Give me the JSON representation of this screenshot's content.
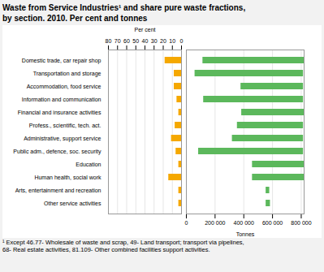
{
  "chart_data": [
    {
      "type": "bar",
      "orientation": "horizontal",
      "title": "Waste from Service Industries¹ and share pure waste fractions,\nby section. 2010. Per cent and tonnes",
      "footnote": "¹ Except 46.77- Wholesale of waste and scrap, 49- Land transport; transport via pipelines,\n68- Real estate activities, 81.109- Other combined facilities support activities.",
      "categories": [
        "Domestic trade, car repair shop",
        "Transportation and storage",
        "Accommodation, food service",
        "Information and communication",
        "Financial and insurance activities",
        "Profess., scientific, tech. act.",
        "Administrative, support service",
        "Public adm., defence, soc. security",
        "Education",
        "Human health, social work",
        "Arts, entertainment and recreation",
        "Other service activities"
      ],
      "values": [
        18,
        8,
        8,
        5,
        3,
        7,
        11,
        6,
        3,
        14,
        3,
        3
      ],
      "color": "#F5A800",
      "xlim": [
        80,
        0
      ],
      "xticks": [
        80,
        70,
        60,
        50,
        40,
        30,
        20,
        10,
        0
      ],
      "xlabel": "Per cent",
      "grid": true
    },
    {
      "type": "bar",
      "orientation": "horizontal",
      "categories": [
        "Domestic trade, car repair shop",
        "Transportation and storage",
        "Accommodation, food service",
        "Information and communication",
        "Financial and insurance activities",
        "Profess., scientific, tech. act.",
        "Administrative, support service",
        "Public adm., defence, soc. security",
        "Education",
        "Human health, social work",
        "Arts, entertainment and recreation",
        "Other service activities"
      ],
      "values": [
        [
          115000,
          820000
        ],
        [
          60000,
          815000
        ],
        [
          380000,
          815000
        ],
        [
          120000,
          815000
        ],
        [
          385000,
          820000
        ],
        [
          355000,
          815000
        ],
        [
          320000,
          815000
        ],
        [
          85000,
          815000
        ],
        [
          460000,
          820000
        ],
        [
          460000,
          820000
        ],
        [
          555000,
          580000
        ],
        [
          555000,
          585000
        ]
      ],
      "color": "#5CB85C",
      "xlim": [
        0,
        820000
      ],
      "xticks": [
        0,
        {
          "value": 200000,
          "label": "200 000"
        },
        {
          "value": 400000,
          "label": "400 000"
        },
        {
          "value": 600000,
          "label": "600 000"
        },
        {
          "value": 800000,
          "label": "800 000"
        }
      ],
      "xlabel": "Tonnes",
      "grid": true,
      "tick_labels": "x"
    }
  ]
}
